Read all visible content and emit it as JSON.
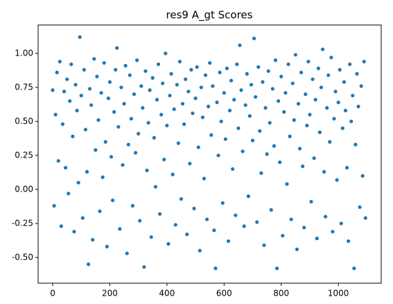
{
  "chart_data": {
    "type": "scatter",
    "title": "res9 A_gt Scores",
    "color": "#1f77b4",
    "xlim": [
      -51,
      1150
    ],
    "xticks": [
      0,
      200,
      400,
      600,
      800,
      1000
    ],
    "ylim": [
      -0.689,
      1.209
    ],
    "yticks": [
      {
        "value": -0.5,
        "label": "-0.50"
      },
      -0.25,
      {
        "value": 0,
        "label": "0.00"
      },
      0.25,
      {
        "value": 0.5,
        "label": "0.50"
      },
      0.75,
      {
        "value": 1,
        "label": "1.00"
      }
    ],
    "x": [
      0,
      5,
      10,
      15,
      20,
      25,
      30,
      35,
      40,
      45,
      50,
      55,
      60,
      65,
      70,
      75,
      80,
      85,
      90,
      95,
      100,
      105,
      110,
      115,
      120,
      125,
      130,
      135,
      140,
      145,
      150,
      155,
      160,
      165,
      170,
      175,
      180,
      185,
      190,
      195,
      200,
      205,
      210,
      215,
      220,
      225,
      230,
      235,
      240,
      245,
      250,
      255,
      260,
      265,
      270,
      275,
      280,
      285,
      290,
      295,
      300,
      305,
      310,
      315,
      320,
      325,
      330,
      335,
      340,
      345,
      350,
      355,
      360,
      365,
      370,
      375,
      380,
      385,
      390,
      395,
      400,
      405,
      410,
      415,
      420,
      425,
      430,
      435,
      440,
      445,
      450,
      455,
      460,
      465,
      470,
      475,
      480,
      485,
      490,
      495,
      500,
      505,
      510,
      515,
      520,
      525,
      530,
      535,
      540,
      545,
      550,
      555,
      560,
      565,
      570,
      575,
      580,
      585,
      590,
      595,
      600,
      605,
      610,
      615,
      620,
      625,
      630,
      635,
      640,
      645,
      650,
      655,
      660,
      665,
      670,
      675,
      680,
      685,
      690,
      695,
      700,
      705,
      710,
      715,
      720,
      725,
      730,
      735,
      740,
      745,
      750,
      755,
      760,
      765,
      770,
      775,
      780,
      785,
      790,
      795,
      800,
      805,
      810,
      815,
      820,
      825,
      830,
      835,
      840,
      845,
      850,
      855,
      860,
      865,
      870,
      875,
      880,
      885,
      890,
      895,
      900,
      905,
      910,
      915,
      920,
      925,
      930,
      935,
      940,
      945,
      950,
      955,
      960,
      965,
      970,
      975,
      980,
      985,
      990,
      995,
      1000,
      1005,
      1010,
      1015,
      1020,
      1025,
      1030,
      1035,
      1040,
      1045,
      1050,
      1055,
      1060,
      1065,
      1070,
      1075,
      1080,
      1085,
      1090,
      1095
    ],
    "values": [
      0.73,
      -0.12,
      0.55,
      0.86,
      0.21,
      0.94,
      -0.27,
      0.48,
      0.72,
      0.16,
      0.81,
      -0.03,
      0.65,
      0.92,
      0.39,
      -0.31,
      0.77,
      0.58,
      0.05,
      1.12,
      0.69,
      -0.21,
      0.88,
      0.44,
      0.13,
      -0.55,
      0.74,
      0.62,
      -0.37,
      0.96,
      0.29,
      0.83,
      0.51,
      -0.16,
      0.71,
      0.09,
      0.93,
      0.35,
      -0.42,
      0.67,
      0.79,
      0.24,
      -0.08,
      0.57,
      0.88,
      1.04,
      0.46,
      -0.29,
      0.75,
      0.18,
      0.63,
      0.91,
      -0.47,
      0.33,
      0.84,
      0.52,
      -0.12,
      0.7,
      0.27,
      0.95,
      0.41,
      -0.23,
      0.76,
      0.6,
      -0.57,
      0.87,
      0.14,
      0.49,
      0.73,
      -0.35,
      0.82,
      0.38,
      0.02,
      0.66,
      0.92,
      -0.18,
      0.55,
      0.78,
      0.22,
      1.0,
      0.47,
      -0.4,
      0.69,
      0.85,
      0.11,
      0.59,
      -0.26,
      0.77,
      0.34,
      0.94,
      -0.07,
      0.63,
      0.48,
      0.81,
      -0.33,
      0.72,
      0.19,
      0.88,
      0.56,
      -0.14,
      0.67,
      0.9,
      0.31,
      -0.45,
      0.75,
      0.53,
      0.08,
      0.84,
      -0.22,
      0.61,
      0.93,
      0.4,
      0.76,
      -0.3,
      -0.58,
      0.64,
      0.25,
      0.86,
      0.5,
      -0.1,
      0.71,
      0.37,
      0.89,
      -0.38,
      0.58,
      0.8,
      0.15,
      0.66,
      -0.19,
      0.92,
      0.45,
      1.06,
      0.73,
      0.28,
      -0.27,
      0.62,
      0.85,
      -0.05,
      0.54,
      0.77,
      0.36,
      1.11,
      0.68,
      -0.24,
      0.9,
      0.43,
      0.12,
      0.79,
      -0.41,
      0.6,
      0.26,
      0.87,
      0.49,
      -0.15,
      0.74,
      0.32,
      0.95,
      -0.58,
      0.65,
      0.2,
      0.83,
      -0.34,
      0.57,
      0.71,
      0.04,
      0.92,
      0.39,
      -0.22,
      0.78,
      0.51,
      0.99,
      -0.44,
      0.63,
      0.3,
      0.86,
      0.17,
      -0.28,
      0.7,
      0.47,
      0.94,
      0.55,
      -0.09,
      0.81,
      0.23,
      0.66,
      -0.36,
      0.89,
      0.42,
      0.75,
      1.03,
      0.13,
      -0.2,
      0.6,
      0.84,
      0.35,
      0.97,
      -0.31,
      0.52,
      0.72,
      0.07,
      0.64,
      0.88,
      -0.25,
      0.45,
      0.79,
      0.58,
      0.16,
      -0.38,
      0.92,
      0.5,
      0.69,
      -0.58,
      0.33,
      0.85,
      0.61,
      -0.13,
      0.76,
      0.1,
      0.94,
      -0.21
    ]
  }
}
